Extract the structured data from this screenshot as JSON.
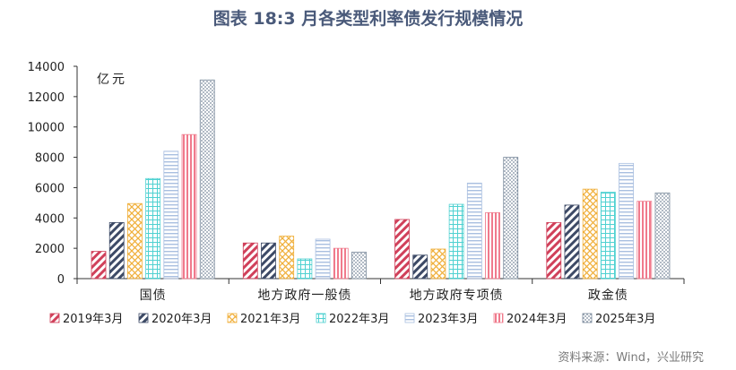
{
  "title": "图表 18:3 月各类型利率债发行规模情况",
  "source": "资料来源：Wind，兴业研究",
  "chart_data": {
    "type": "bar",
    "unit_label": "亿元",
    "categories": [
      "国债",
      "地方政府一般债",
      "地方政府专项债",
      "政金债"
    ],
    "ylim": [
      0,
      14000
    ],
    "yticks": [
      0,
      2000,
      4000,
      6000,
      8000,
      10000,
      12000,
      14000
    ],
    "legend_position": "bottom",
    "grid": false,
    "series": [
      {
        "name": "2019年3月",
        "color": "#d0405a",
        "pattern": "diag-right",
        "values": [
          1800,
          2350,
          3900,
          3700
        ]
      },
      {
        "name": "2020年3月",
        "color": "#3d4a66",
        "pattern": "diag-right",
        "values": [
          3700,
          2350,
          1550,
          4850
        ]
      },
      {
        "name": "2021年3月",
        "color": "#f0b03c",
        "pattern": "cross",
        "values": [
          4950,
          2800,
          1950,
          5900
        ]
      },
      {
        "name": "2022年3月",
        "color": "#4fd1d1",
        "pattern": "grid",
        "values": [
          6600,
          1300,
          4900,
          5700
        ]
      },
      {
        "name": "2023年3月",
        "color": "#a9bfe0",
        "pattern": "horizontal",
        "values": [
          8400,
          2600,
          6300,
          7600
        ]
      },
      {
        "name": "2024年3月",
        "color": "#f07a8c",
        "pattern": "vertical",
        "values": [
          9500,
          2000,
          4350,
          5100
        ]
      },
      {
        "name": "2025年3月",
        "color": "#7a8a9c",
        "pattern": "dots",
        "values": [
          13100,
          1750,
          8000,
          5650
        ]
      }
    ]
  }
}
